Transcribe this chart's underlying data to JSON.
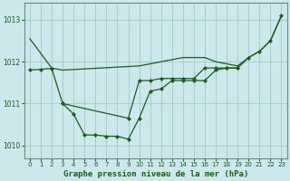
{
  "background_color": "#cce8ea",
  "grid_color": "#aacccc",
  "line_color": "#1a5e1a",
  "title": "Graphe pression niveau de la mer (hPa)",
  "xlim": [
    -0.5,
    23.5
  ],
  "ylim": [
    1009.7,
    1013.4
  ],
  "yticks": [
    1010,
    1011,
    1012,
    1013
  ],
  "xticks": [
    0,
    1,
    2,
    3,
    4,
    5,
    6,
    7,
    8,
    9,
    10,
    11,
    12,
    13,
    14,
    15,
    16,
    17,
    18,
    19,
    20,
    21,
    22,
    23
  ],
  "series_smooth": {
    "x": [
      0,
      1,
      2,
      3,
      10,
      11,
      12,
      13,
      14,
      15,
      16,
      17,
      18,
      19,
      20,
      21,
      22,
      23
    ],
    "y": [
      1012.55,
      1012.2,
      1011.85,
      1011.8,
      1011.9,
      1011.95,
      1012.0,
      1012.05,
      1012.1,
      1012.1,
      1012.1,
      1012.0,
      1011.95,
      1011.9,
      1012.1,
      1012.25,
      1012.5,
      1013.1
    ]
  },
  "series_bottom": {
    "x": [
      3,
      4,
      5,
      6,
      7,
      8,
      9,
      10,
      11,
      12,
      13,
      14,
      15,
      16,
      17,
      18,
      19
    ],
    "y": [
      1011.0,
      1010.75,
      1010.25,
      1010.25,
      1010.22,
      1010.22,
      1010.15,
      1010.65,
      1011.3,
      1011.35,
      1011.55,
      1011.55,
      1011.55,
      1011.55,
      1011.8,
      1011.85,
      1011.85
    ]
  },
  "series_mid": {
    "x": [
      0,
      1,
      2,
      3,
      9,
      10,
      11,
      12,
      13,
      14,
      15,
      16,
      17,
      18,
      19,
      20,
      21,
      22,
      23
    ],
    "y": [
      1011.8,
      1011.82,
      1011.84,
      1011.0,
      1010.65,
      1011.55,
      1011.55,
      1011.6,
      1011.6,
      1011.6,
      1011.6,
      1011.85,
      1011.85,
      1011.85,
      1011.85,
      1012.1,
      1012.25,
      1012.5,
      1013.1
    ]
  }
}
